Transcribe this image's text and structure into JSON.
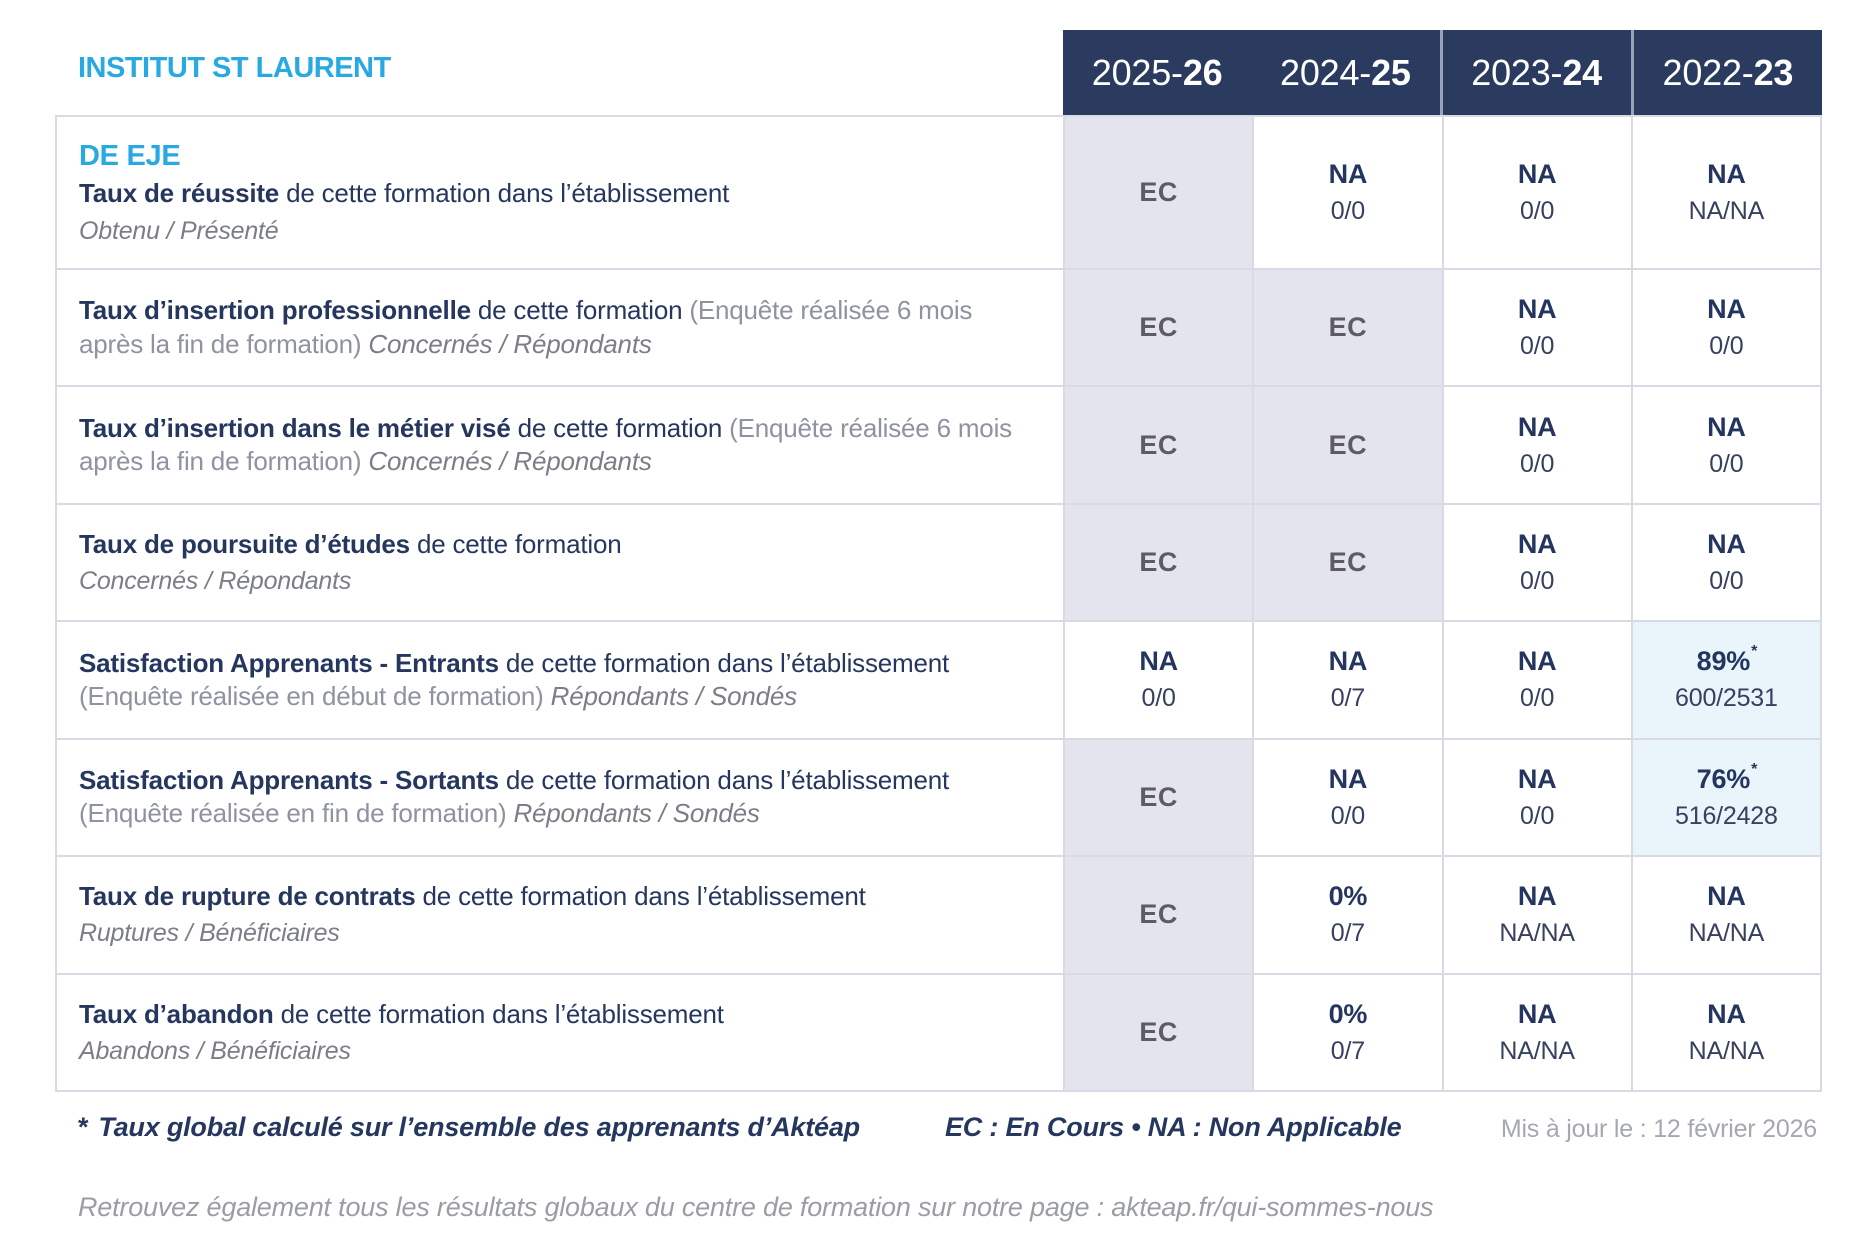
{
  "institution": "INSTITUT ST LAURENT",
  "program": "DE EJE",
  "colors": {
    "accent_cyan": "#29a9e1",
    "header_navy": "#2b3a5f",
    "text_navy": "#26375f",
    "ec_cell_bg": "#e4e4ee",
    "pct_cell_bg": "#e9f4fb",
    "grid_border": "#d9dae3"
  },
  "year_columns": [
    {
      "prefix": "2025-",
      "bold": "26"
    },
    {
      "prefix": "2024-",
      "bold": "25"
    },
    {
      "prefix": "2023-",
      "bold": "24"
    },
    {
      "prefix": "2022-",
      "bold": "23"
    }
  ],
  "rows": [
    {
      "title": "Taux de réussite",
      "text": "de cette formation dans l’établissement",
      "paren": "",
      "tail": "Obtenu / Présenté",
      "tail_block": true,
      "cells": [
        {
          "style": "ec",
          "main": "EC"
        },
        {
          "style": "plain",
          "main": "NA",
          "frac": "0/0"
        },
        {
          "style": "plain",
          "main": "NA",
          "frac": "0/0"
        },
        {
          "style": "plain",
          "main": "NA",
          "frac": "NA/NA"
        }
      ]
    },
    {
      "title": "Taux d’insertion professionnelle",
      "text": "de cette formation",
      "paren": "(Enquête réalisée 6 mois après la fin de formation)",
      "tail": "Concernés / Répondants",
      "tail_block": false,
      "cells": [
        {
          "style": "ec",
          "main": "EC"
        },
        {
          "style": "ec",
          "main": "EC"
        },
        {
          "style": "plain",
          "main": "NA",
          "frac": "0/0"
        },
        {
          "style": "plain",
          "main": "NA",
          "frac": "0/0"
        }
      ]
    },
    {
      "title": "Taux d’insertion dans le métier visé",
      "text": "de cette formation",
      "paren": "(Enquête réalisée 6 mois après la fin de formation)",
      "tail": "Concernés / Répondants",
      "tail_block": false,
      "cells": [
        {
          "style": "ec",
          "main": "EC"
        },
        {
          "style": "ec",
          "main": "EC"
        },
        {
          "style": "plain",
          "main": "NA",
          "frac": "0/0"
        },
        {
          "style": "plain",
          "main": "NA",
          "frac": "0/0"
        }
      ]
    },
    {
      "title": "Taux de poursuite d’études",
      "text": "de cette formation",
      "paren": "",
      "tail": "Concernés / Répondants",
      "tail_block": true,
      "cells": [
        {
          "style": "ec",
          "main": "EC"
        },
        {
          "style": "ec",
          "main": "EC"
        },
        {
          "style": "plain",
          "main": "NA",
          "frac": "0/0"
        },
        {
          "style": "plain",
          "main": "NA",
          "frac": "0/0"
        }
      ]
    },
    {
      "title": "Satisfaction Apprenants - Entrants",
      "text": "de cette formation dans l’établissement",
      "paren": "(Enquête réalisée en début de formation)",
      "tail": "Répondants / Sondés",
      "tail_block": false,
      "cells": [
        {
          "style": "plain",
          "main": "NA",
          "frac": "0/0"
        },
        {
          "style": "plain",
          "main": "NA",
          "frac": "0/7"
        },
        {
          "style": "plain",
          "main": "NA",
          "frac": "0/0"
        },
        {
          "style": "pct",
          "main": "89%",
          "star": true,
          "frac": "600/2531"
        }
      ]
    },
    {
      "title": "Satisfaction Apprenants - Sortants",
      "text": "de cette formation dans l’établissement",
      "paren": "(Enquête réalisée en fin de formation)",
      "tail": "Répondants / Sondés",
      "tail_block": false,
      "cells": [
        {
          "style": "ec",
          "main": "EC"
        },
        {
          "style": "plain",
          "main": "NA",
          "frac": "0/0"
        },
        {
          "style": "plain",
          "main": "NA",
          "frac": "0/0"
        },
        {
          "style": "pct",
          "main": "76%",
          "star": true,
          "frac": "516/2428"
        }
      ]
    },
    {
      "title": "Taux de rupture de contrats",
      "text": "de cette formation dans l’établissement",
      "paren": "",
      "tail": "Ruptures / Bénéficiaires",
      "tail_block": true,
      "cells": [
        {
          "style": "ec",
          "main": "EC"
        },
        {
          "style": "plain",
          "main": "0%",
          "frac": "0/7"
        },
        {
          "style": "plain",
          "main": "NA",
          "frac": "NA/NA"
        },
        {
          "style": "plain",
          "main": "NA",
          "frac": "NA/NA"
        }
      ]
    },
    {
      "title": "Taux d’abandon",
      "text": "de cette formation dans l’établissement",
      "paren": "",
      "tail": "Abandons / Bénéficiaires",
      "tail_block": true,
      "cells": [
        {
          "style": "ec",
          "main": "EC"
        },
        {
          "style": "plain",
          "main": "0%",
          "frac": "0/7"
        },
        {
          "style": "plain",
          "main": "NA",
          "frac": "NA/NA"
        },
        {
          "style": "plain",
          "main": "NA",
          "frac": "NA/NA"
        }
      ]
    }
  ],
  "footer": {
    "star": "*",
    "footnote": "Taux global calculé sur l’ensemble des apprenants d’Aktéap",
    "legend": "EC : En Cours  •  NA : Non Applicable",
    "updated": "Mis à jour le : 12 février 2026",
    "bottom_note": "Retrouvez également tous les résultats globaux du centre de formation sur notre page : akteap.fr/qui-sommes-nous"
  }
}
